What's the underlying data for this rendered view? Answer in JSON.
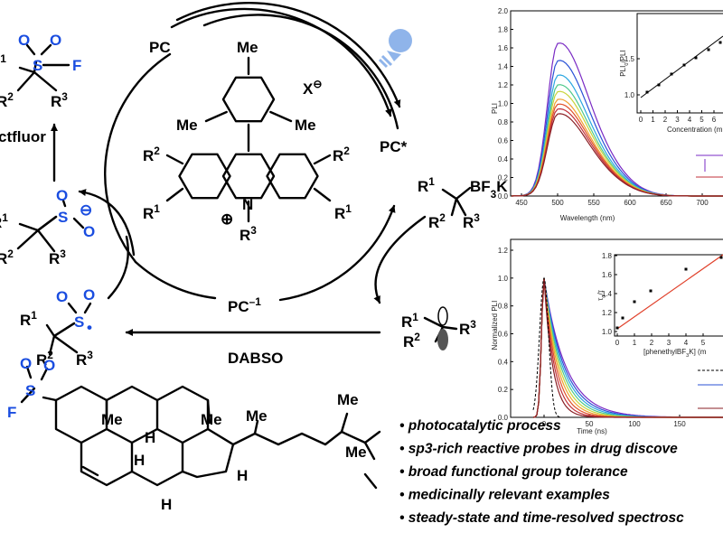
{
  "cycle": {
    "pc": "PC",
    "pc_excited": "PC*",
    "pc_reduced": {
      "t": "PC",
      "sup": "–1"
    },
    "reagent": "DABSO",
    "fluorinating_agent": "ctfluor"
  },
  "catalyst": {
    "methyls": [
      "Me",
      "Me",
      "Me"
    ],
    "counterion": {
      "t": "X",
      "sup": "⊖"
    },
    "nitrogen": "N",
    "charge": "⊕",
    "substituents": [
      {
        "t": "R",
        "sup": "2"
      },
      {
        "t": "R",
        "sup": "2"
      },
      {
        "t": "R",
        "sup": "1"
      },
      {
        "t": "R",
        "sup": "1"
      },
      {
        "t": "R",
        "sup": "3"
      }
    ]
  },
  "sulfonyl_fluoride": {
    "atoms": [
      "S",
      "O",
      "O",
      "F"
    ],
    "substituents": [
      {
        "t": "R",
        "sup": "1"
      },
      {
        "t": "R",
        "sup": "2"
      },
      {
        "t": "R",
        "sup": "3"
      }
    ]
  },
  "sulfinate": {
    "atoms": [
      "S",
      "O",
      "O",
      "⊖"
    ],
    "substituents": [
      {
        "t": "R",
        "sup": "1"
      },
      {
        "t": "R",
        "sup": "2"
      },
      {
        "t": "R",
        "sup": "3"
      }
    ]
  },
  "sulfonyl_radical": {
    "atoms": [
      "S",
      "O",
      "O",
      "•"
    ],
    "substituents": [
      {
        "t": "R",
        "sup": "1"
      },
      {
        "t": "R",
        "sup": "2"
      },
      {
        "t": "R",
        "sup": "3"
      }
    ]
  },
  "trifluoroborate": {
    "group": {
      "t": "BF",
      "sub": "3",
      "t2": "K"
    },
    "substituents": [
      {
        "t": "R",
        "sup": "1"
      },
      {
        "t": "R",
        "sup": "2"
      },
      {
        "t": "R",
        "sup": "3"
      }
    ]
  },
  "alkyl_radical": {
    "substituents": [
      {
        "t": "R",
        "sup": "1"
      },
      {
        "t": "R",
        "sup": "2"
      },
      {
        "t": "R",
        "sup": "3"
      }
    ]
  },
  "steroid": {
    "atoms": [
      "F",
      "S",
      "O",
      "O"
    ],
    "labels": [
      "Me",
      "Me",
      "Me",
      "Me",
      "Me",
      "H",
      "H",
      "H",
      "H"
    ]
  },
  "highlights": [
    "• photocatalytic process",
    "• sp3-rich reactive probes in drug discove",
    "• broad functional group tolerance",
    "• medicinally relevant examples",
    "• steady-state and time-resolved spectrosc"
  ],
  "emission_plot": {
    "y_label": "PLI",
    "x_label": "Wavelength (nm)",
    "yticks": [
      "0.0",
      "0.2",
      "0.4",
      "0.6",
      "0.8",
      "1.0",
      "1.2",
      "1.4",
      "1.6",
      "1.8",
      "2.0"
    ],
    "xticks": [
      "450",
      "500",
      "550",
      "600",
      "650",
      "700"
    ],
    "inset": {
      "y_label": {
        "t": "PLI",
        "sub": "0",
        "t2": "/PLI"
      },
      "x_label": "Concentration (m",
      "yticks": [
        "1.0",
        "1.5"
      ],
      "xticks": [
        "0",
        "1",
        "2",
        "3",
        "4",
        "5",
        "6"
      ]
    }
  },
  "decay_plot": {
    "y_label": "Normalized PLI",
    "x_label": "Time (ns)",
    "yticks": [
      "0.0",
      "0.2",
      "0.4",
      "0.6",
      "0.8",
      "1.0",
      "1.2"
    ],
    "xticks": [
      "0",
      "50",
      "100",
      "150"
    ],
    "inset": {
      "y_label": {
        "t": "τ",
        "sub": "0",
        "t2": "/τ"
      },
      "x_label": {
        "t": "[phenethylBF",
        "sub": "3",
        "t2": "K] (m"
      },
      "yticks": [
        "1.0",
        "1.2",
        "1.4",
        "1.6",
        "1.8"
      ],
      "xticks": [
        "0",
        "1",
        "2",
        "3",
        "4",
        "5"
      ]
    }
  }
}
